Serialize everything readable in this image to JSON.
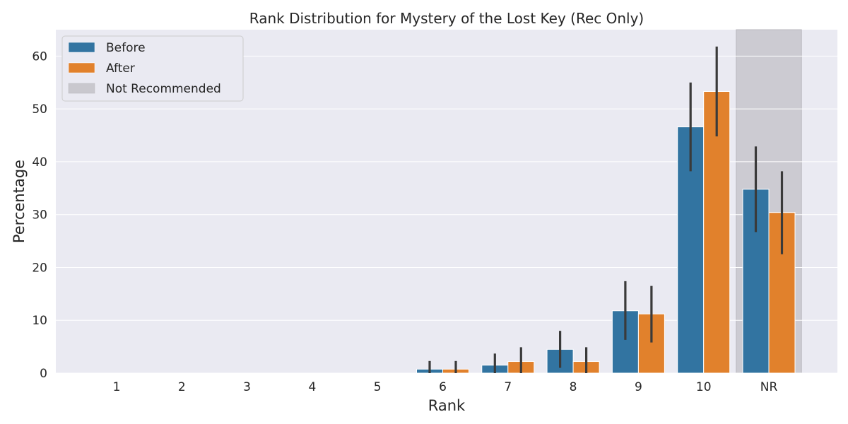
{
  "chart_data": {
    "type": "bar",
    "title": "Rank Distribution for Mystery of the Lost Key (Rec Only)",
    "xlabel": "Rank",
    "ylabel": "Percentage",
    "categories": [
      "1",
      "2",
      "3",
      "4",
      "5",
      "6",
      "7",
      "8",
      "9",
      "10",
      "NR"
    ],
    "ylim": [
      0,
      65
    ],
    "yticks": [
      0,
      10,
      20,
      30,
      40,
      50,
      60
    ],
    "grid": true,
    "legend_position": "top-left",
    "series": [
      {
        "name": "Before",
        "color": "#3274a1",
        "values": [
          0,
          0,
          0,
          0,
          0,
          0.75,
          1.5,
          4.5,
          11.8,
          46.6,
          34.8
        ],
        "error_low": [
          0,
          0,
          0,
          0,
          0,
          0,
          0,
          1.0,
          6.3,
          38.2,
          26.7
        ],
        "error_high": [
          0,
          0,
          0,
          0,
          0,
          2.3,
          3.7,
          8.0,
          17.4,
          55.0,
          42.9
        ]
      },
      {
        "name": "After",
        "color": "#e1812c",
        "values": [
          0,
          0,
          0,
          0,
          0,
          0.75,
          2.2,
          2.2,
          11.2,
          53.3,
          30.4
        ],
        "error_low": [
          0,
          0,
          0,
          0,
          0,
          0,
          0,
          0,
          5.8,
          44.8,
          22.5
        ],
        "error_high": [
          0,
          0,
          0,
          0,
          0,
          2.3,
          4.9,
          4.9,
          16.5,
          61.8,
          38.2
        ]
      }
    ],
    "highlight": {
      "category": "NR",
      "label": "Not Recommended",
      "color": "#c9c8ce"
    }
  }
}
